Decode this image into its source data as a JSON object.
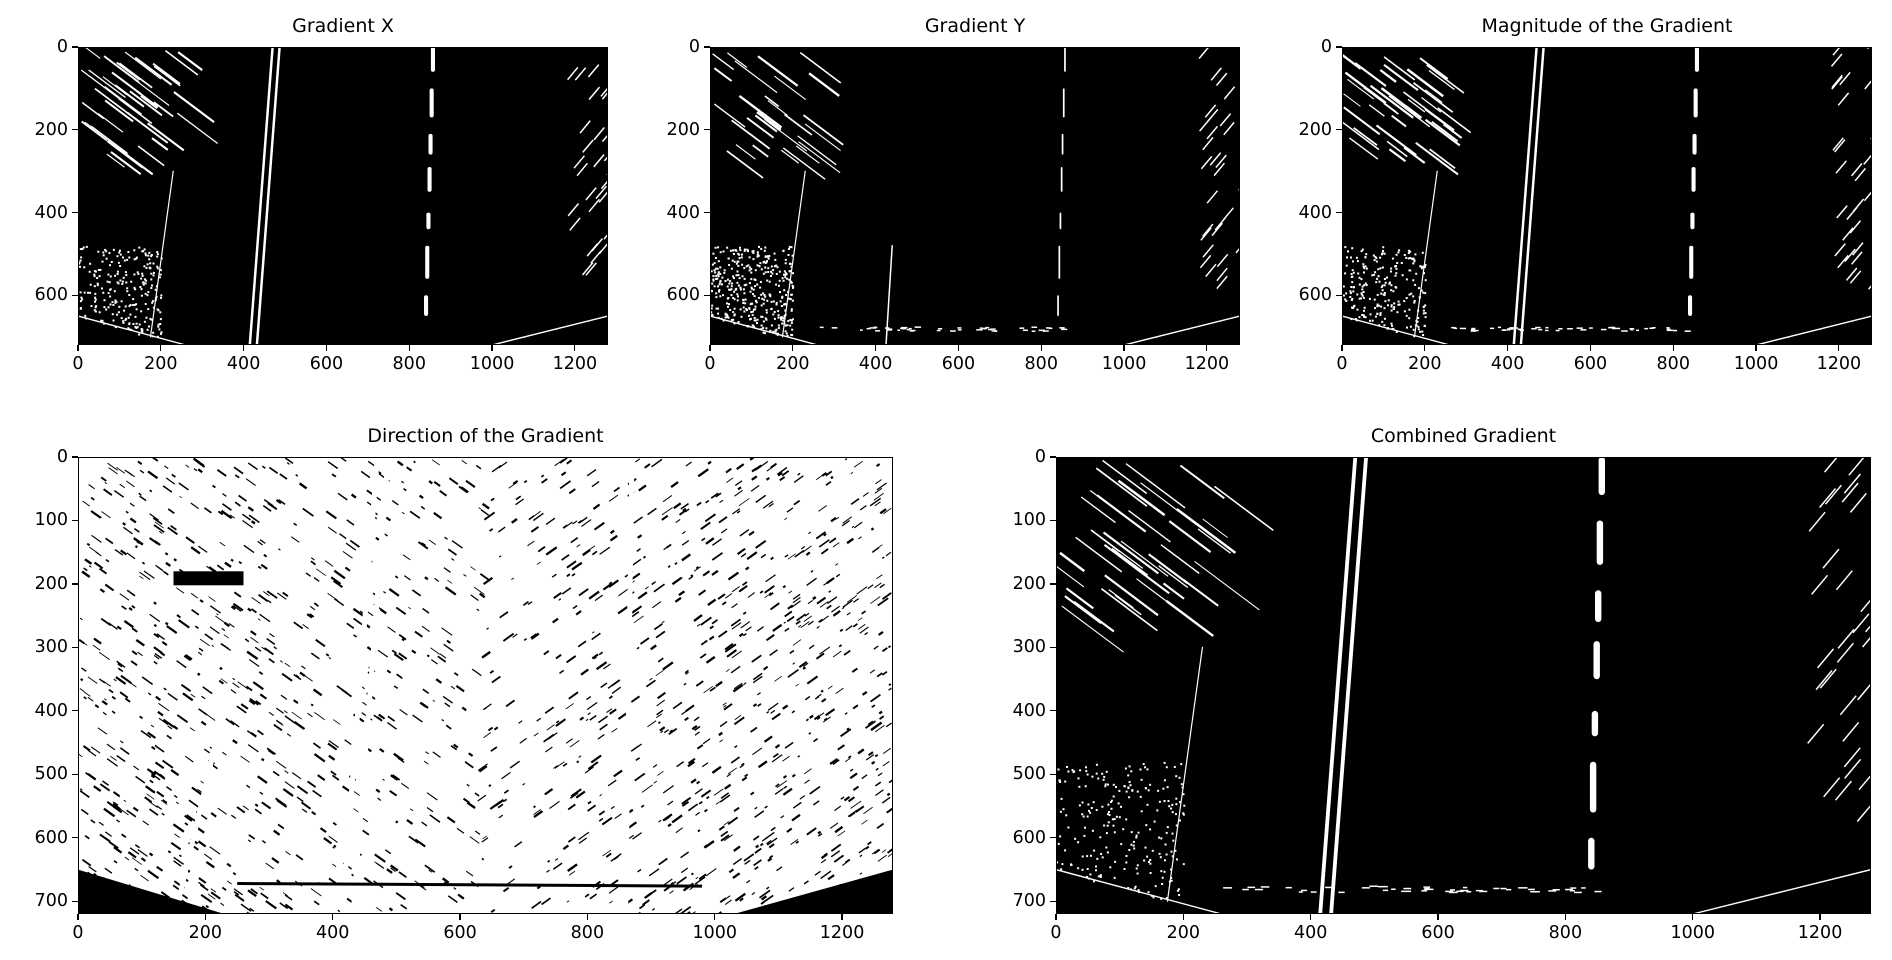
{
  "chart_data": [
    {
      "type": "heatmap",
      "title": "Gradient X",
      "xlim": [
        0,
        1280
      ],
      "ylim": [
        720,
        0
      ],
      "xticks": [
        "0",
        "200",
        "400",
        "600",
        "800",
        "1000",
        "1200"
      ],
      "yticks": [
        "0",
        "200",
        "400",
        "600"
      ],
      "background": "#000000",
      "foreground": "#ffffff",
      "description_values": {
        "lane_left_x_bottom": 420,
        "lane_left_x_top": 480,
        "lane_right_x": 860
      }
    },
    {
      "type": "heatmap",
      "title": "Gradient Y",
      "xlim": [
        0,
        1280
      ],
      "ylim": [
        720,
        0
      ],
      "xticks": [
        "0",
        "200",
        "400",
        "600",
        "800",
        "1000",
        "1200"
      ],
      "yticks": [
        "0",
        "200",
        "400",
        "600"
      ],
      "background": "#000000",
      "foreground": "#ffffff"
    },
    {
      "type": "heatmap",
      "title": "Magnitude of the Gradient",
      "xlim": [
        0,
        1280
      ],
      "ylim": [
        720,
        0
      ],
      "xticks": [
        "0",
        "200",
        "400",
        "600",
        "800",
        "1000",
        "1200"
      ],
      "yticks": [
        "0",
        "200",
        "400",
        "600"
      ],
      "background": "#000000",
      "foreground": "#ffffff"
    },
    {
      "type": "heatmap",
      "title": "Direction of the Gradient",
      "xlim": [
        0,
        1280
      ],
      "ylim": [
        720,
        0
      ],
      "xticks": [
        "0",
        "200",
        "400",
        "600",
        "800",
        "1000",
        "1200"
      ],
      "yticks": [
        "0",
        "100",
        "200",
        "300",
        "400",
        "500",
        "600",
        "700"
      ],
      "background": "#000000",
      "foreground": "#ffffff"
    },
    {
      "type": "heatmap",
      "title": "Combined Gradient",
      "xlim": [
        0,
        1280
      ],
      "ylim": [
        720,
        0
      ],
      "xticks": [
        "0",
        "200",
        "400",
        "600",
        "800",
        "1000",
        "1200"
      ],
      "yticks": [
        "0",
        "100",
        "200",
        "300",
        "400",
        "500",
        "600",
        "700"
      ],
      "background": "#000000",
      "foreground": "#ffffff"
    }
  ]
}
